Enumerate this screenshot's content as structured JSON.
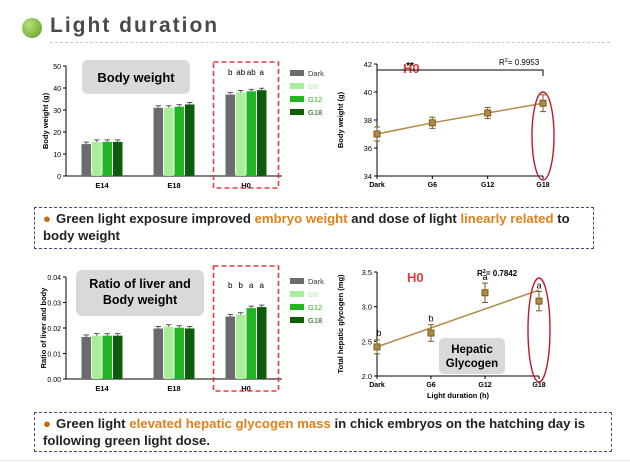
{
  "header": {
    "title": "Light duration"
  },
  "colors": {
    "Dark": "#6b6b6b",
    "G6": "#a8ee9a",
    "G12": "#22b422",
    "G18": "#0b5c0b",
    "line": "#b08b47",
    "accent_red": "#e23b3b",
    "highlight": "#e0801a"
  },
  "chart_data": [
    {
      "type": "bar",
      "title": "Body weight",
      "ylabel": "Body weight (g)",
      "ylim": [
        0,
        50
      ],
      "yticks": [
        "0",
        "10",
        "20",
        "30",
        "40",
        "50"
      ],
      "categories": [
        "E14",
        "E18",
        "H0"
      ],
      "series": [
        {
          "name": "Dark",
          "values": [
            14.5,
            31,
            37
          ]
        },
        {
          "name": "G6",
          "values": [
            15.5,
            31,
            38
          ]
        },
        {
          "name": "G12",
          "values": [
            15.5,
            31.5,
            38.5
          ]
        },
        {
          "name": "G18",
          "values": [
            15.5,
            32.5,
            39
          ]
        }
      ],
      "group_labels": {
        "H0": [
          "b",
          "ab",
          "ab",
          "a"
        ]
      },
      "legend": [
        "Dark",
        "G6",
        "G12",
        "G18"
      ]
    },
    {
      "type": "line",
      "title": "H0",
      "ylabel": "Body weight (g)",
      "ylim": [
        34,
        42
      ],
      "yticks": [
        "34",
        "36",
        "38",
        "40",
        "42"
      ],
      "x": [
        "Dark",
        "G6",
        "G12",
        "G18"
      ],
      "y": [
        37.0,
        37.8,
        38.5,
        39.2
      ],
      "error": [
        0.5,
        0.4,
        0.4,
        0.6
      ],
      "r2": "= 0.9953",
      "significance": "**"
    },
    {
      "type": "bar",
      "title": "Ratio of liver and Body weight",
      "title_lines": [
        "Ratio of liver and",
        "Body weight"
      ],
      "ylabel": "Ratio of liver and body",
      "ylim": [
        0,
        0.04
      ],
      "yticks": [
        "0.00",
        "0.01",
        "0.02",
        "0.03",
        "0.04"
      ],
      "categories": [
        "E14",
        "E18",
        "H0"
      ],
      "series": [
        {
          "name": "Dark",
          "values": [
            0.0165,
            0.0198,
            0.0245
          ]
        },
        {
          "name": "G6",
          "values": [
            0.017,
            0.0205,
            0.0252
          ]
        },
        {
          "name": "G12",
          "values": [
            0.017,
            0.0201,
            0.0278
          ]
        },
        {
          "name": "G18",
          "values": [
            0.017,
            0.0198,
            0.0282
          ]
        }
      ],
      "group_labels": {
        "H0": [
          "b",
          "b",
          "a",
          "a"
        ]
      },
      "legend": [
        "Dark",
        "G6",
        "G12",
        "G18"
      ]
    },
    {
      "type": "scatter",
      "title": "H0",
      "ylabel": "Total hepatic glycogen (mg)",
      "xlabel": "Light duration (h)",
      "ylim": [
        2.0,
        3.5
      ],
      "yticks": [
        "2.0",
        "2.5",
        "3.0",
        "3.5"
      ],
      "x": [
        "Dark",
        "G6",
        "G12",
        "G18"
      ],
      "y": [
        2.42,
        2.62,
        3.2,
        3.08
      ],
      "error": [
        0.1,
        0.12,
        0.14,
        0.14
      ],
      "point_labels": [
        "b",
        "b",
        "a",
        "a"
      ],
      "r2": "= 0.7842",
      "trend": [
        2.42,
        3.24
      ],
      "annotation_lines": [
        "Hepatic",
        "Glycogen"
      ]
    }
  ],
  "notes": [
    {
      "pre": "Green light exposure improved ",
      "hl1": "embryo weight",
      "mid": " and dose of light ",
      "hl2": "linearly related",
      "post": " to body weight"
    },
    {
      "pre": "Green light ",
      "hl1": "elevated hepatic glycogen mass",
      "mid": " in chick embryos on the hatching day is following green light dose.",
      "hl2": "",
      "post": ""
    }
  ]
}
